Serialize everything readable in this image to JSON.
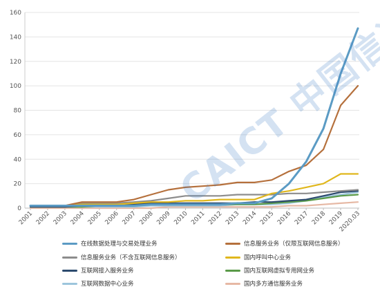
{
  "chart_data": {
    "type": "line",
    "title": "",
    "xlabel": "",
    "ylabel": "",
    "ylim": [
      0,
      160
    ],
    "yticks": [
      "0",
      "20",
      "40",
      "60",
      "80",
      "100",
      "120",
      "140",
      "160"
    ],
    "grid": "horizontal",
    "legend_position": "bottom",
    "categories": [
      "2001",
      "2002",
      "2003",
      "2004",
      "2005",
      "2006",
      "2007",
      "2008",
      "2009",
      "2010",
      "2011",
      "2012",
      "2013",
      "2014",
      "2015",
      "2016",
      "2017",
      "2018",
      "2019",
      "2020.03"
    ],
    "series": [
      {
        "name": "在线数据处理与交易处理业务",
        "color": "#5b9bc4",
        "values": [
          2,
          2,
          2,
          2,
          2,
          2,
          2,
          3,
          3,
          3,
          3,
          3,
          4,
          4,
          8,
          20,
          38,
          65,
          110,
          147
        ]
      },
      {
        "name": "信息服务业务（仅限互联网信息服务）",
        "color": "#b5703c",
        "values": [
          2,
          2,
          2,
          5,
          5,
          5,
          7,
          11,
          15,
          17,
          18,
          19,
          21,
          21,
          23,
          30,
          35,
          48,
          84,
          100
        ]
      },
      {
        "name": "信息服务业务（不含互联网信息服务）",
        "color": "#8c8c8c",
        "values": [
          2,
          2,
          2,
          4,
          4,
          4,
          5,
          6,
          8,
          10,
          10,
          10,
          11,
          11,
          11,
          12,
          12,
          13,
          14,
          15
        ]
      },
      {
        "name": "国内呼叫中心业务",
        "color": "#e0b71c",
        "values": [
          2,
          2,
          2,
          3,
          3,
          3,
          4,
          5,
          5,
          6,
          6,
          7,
          7,
          7,
          12,
          14,
          17,
          20,
          28,
          28
        ]
      },
      {
        "name": "互联网接入服务业务",
        "color": "#2c4a6e",
        "values": [
          1,
          1,
          1,
          2,
          2,
          2,
          3,
          4,
          4,
          4,
          4,
          4,
          4,
          5,
          5,
          6,
          7,
          10,
          13,
          14
        ]
      },
      {
        "name": "国内互联网虚拟专用网业务",
        "color": "#5a9a48",
        "values": [
          1,
          1,
          1,
          1,
          2,
          2,
          2,
          3,
          3,
          3,
          3,
          3,
          3,
          3,
          4,
          5,
          6,
          8,
          10,
          11
        ]
      },
      {
        "name": "互联网数据中心业务",
        "color": "#9cc5dc",
        "values": [
          1,
          1,
          1,
          1,
          1,
          1,
          1,
          2,
          2,
          2,
          2,
          2,
          3,
          3,
          3,
          4,
          6,
          9,
          11,
          13
        ]
      },
      {
        "name": "国内多方通信服务业务",
        "color": "#e6b8a4",
        "values": [
          0,
          0,
          0,
          0,
          0,
          0,
          0,
          0,
          1,
          1,
          1,
          1,
          1,
          1,
          1,
          2,
          2,
          3,
          4,
          5
        ]
      }
    ]
  },
  "watermark": "CAICT 中国信通院"
}
